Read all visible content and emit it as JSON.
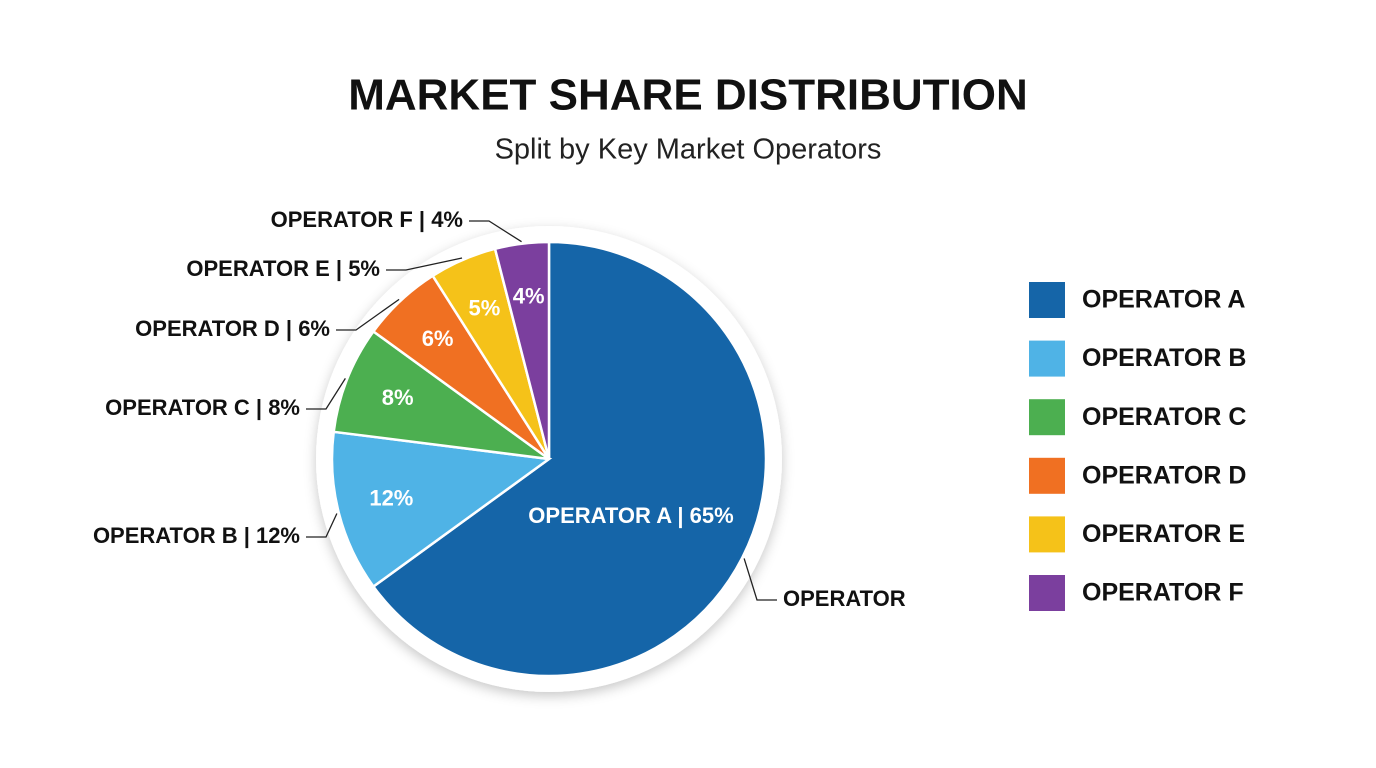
{
  "chart_data": {
    "type": "pie",
    "title": "MARKET SHARE DISTRIBUTION",
    "subtitle": "Split by Key Market Operators",
    "categories": [
      "OPERATOR A",
      "OPERATOR B",
      "OPERATOR C",
      "OPERATOR D",
      "OPERATOR E",
      "OPERATOR F"
    ],
    "values": [
      65,
      12,
      8,
      6,
      5,
      4
    ],
    "value_labels": [
      "OPERATOR A | 65%",
      "12%",
      "8%",
      "6%",
      "5%",
      "4%"
    ],
    "callout_labels": [
      "OPERATOR",
      "OPERATOR B | 12%",
      "OPERATOR C | 8%",
      "OPERATOR D | 6%",
      "OPERATOR E | 5%",
      "OPERATOR F | 4%"
    ],
    "colors": [
      "#1565a8",
      "#4fb3e6",
      "#4caf50",
      "#f07022",
      "#f5c219",
      "#7b3f9e"
    ],
    "legend": "right"
  }
}
